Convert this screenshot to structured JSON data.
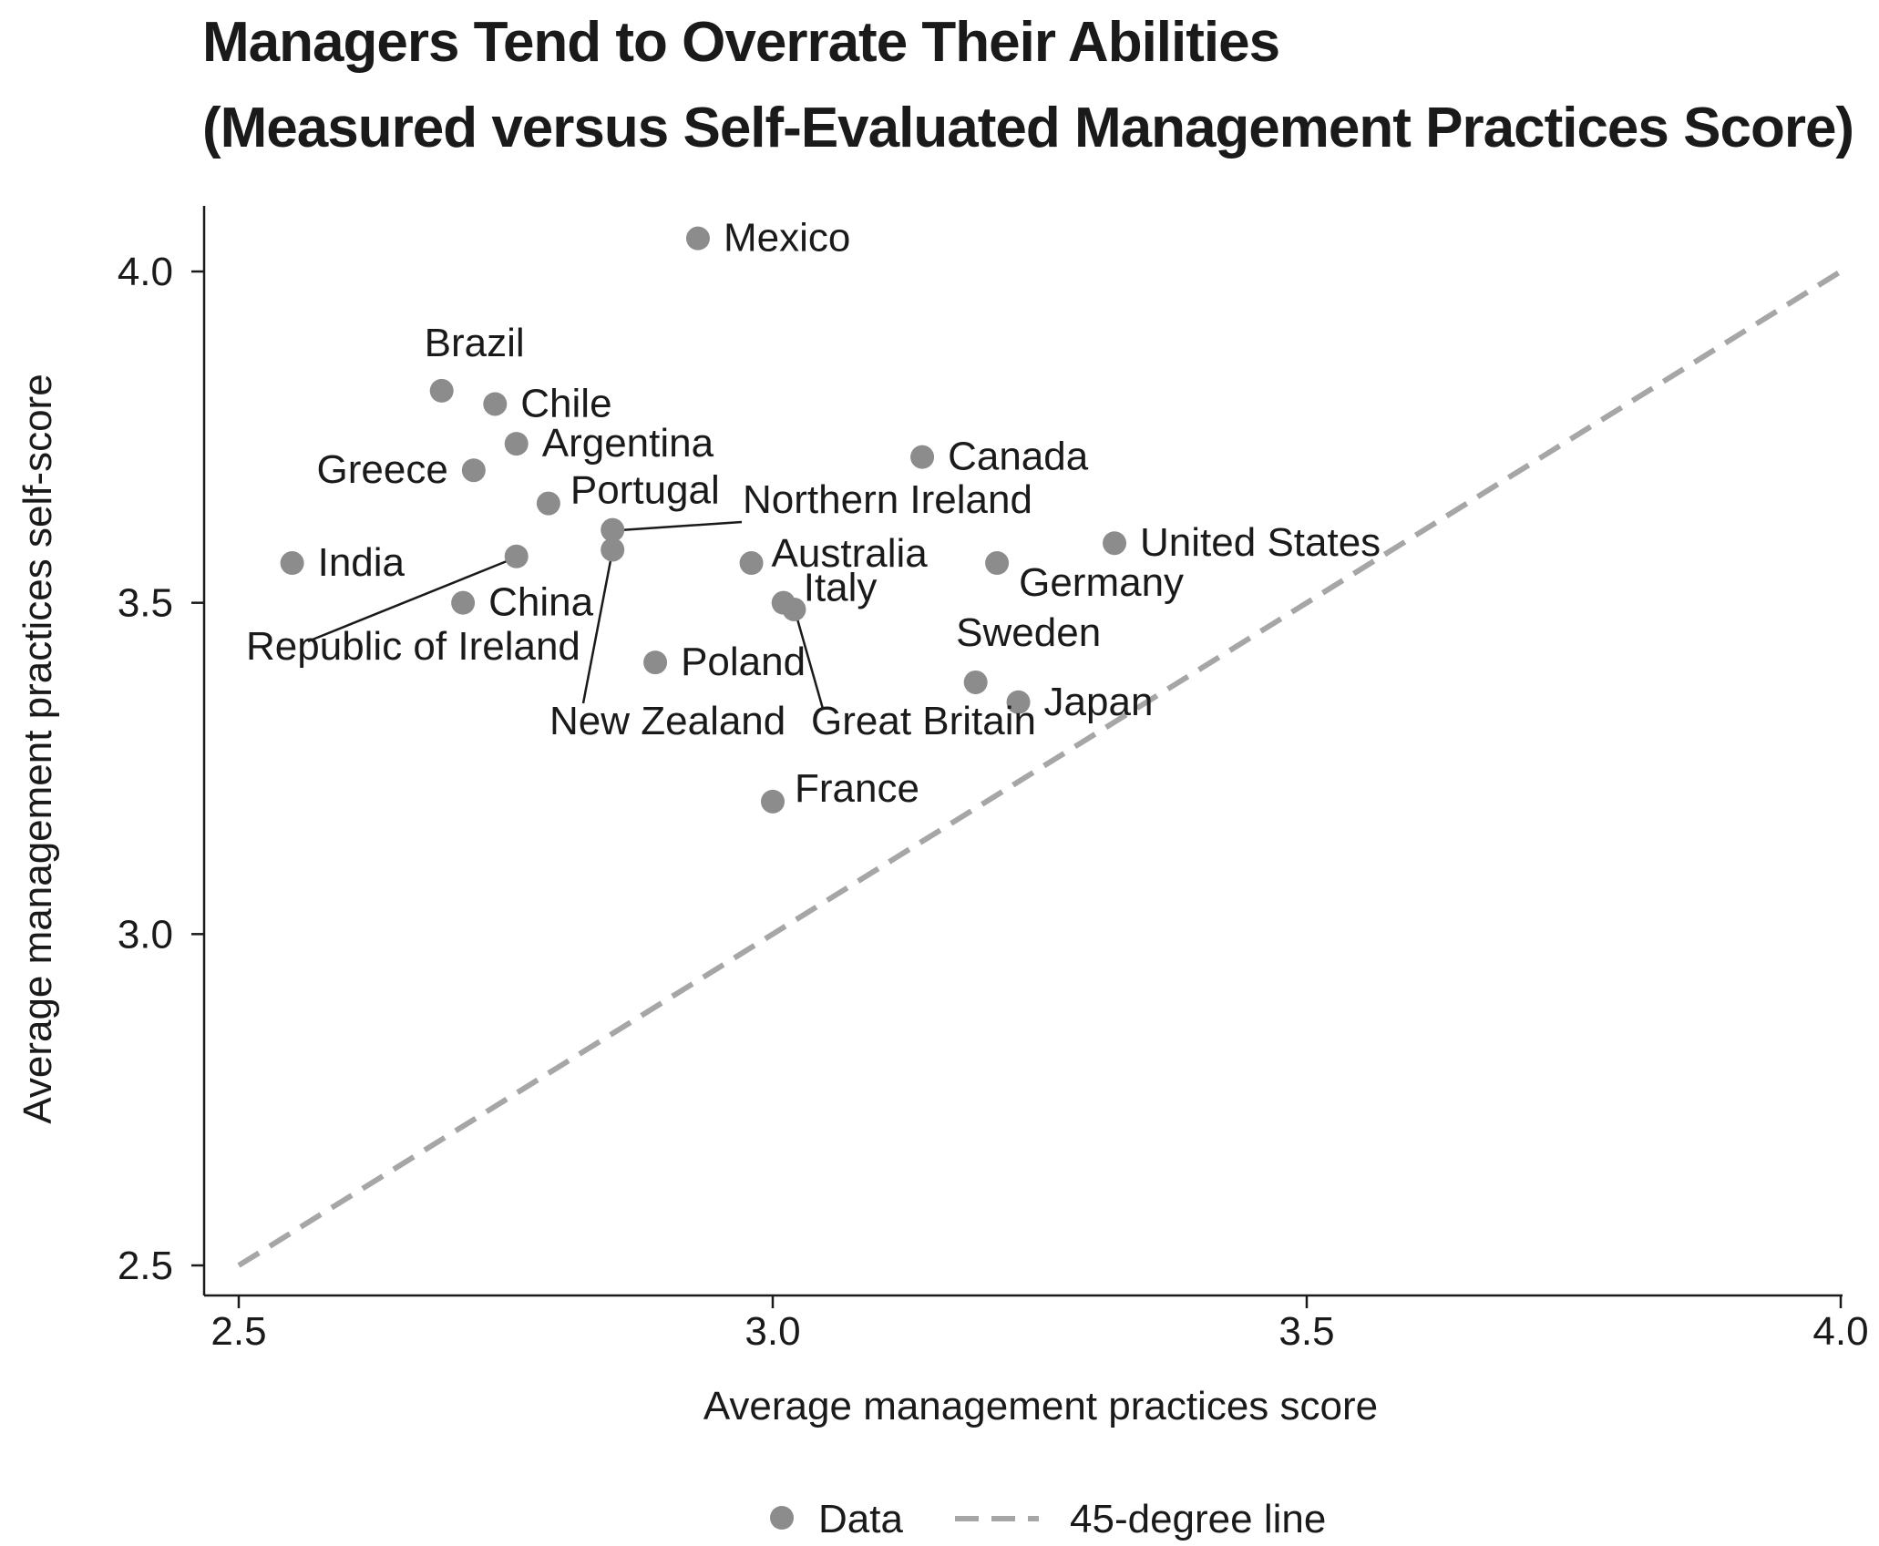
{
  "chart_data": {
    "type": "scatter",
    "title": "Managers Tend to Overrate Their Abilities",
    "subtitle": "(Measured versus Self-Evaluated Management Practices Score)",
    "xlabel": "Average management practices score",
    "ylabel": "Average management practices self-score",
    "xlim": [
      2.5,
      4.0
    ],
    "ylim": [
      2.5,
      4.0
    ],
    "xticks": [
      "2.5",
      "3.0",
      "3.5",
      "4.0"
    ],
    "yticks": [
      "2.5",
      "3.0",
      "3.5",
      "4.0"
    ],
    "grid": false,
    "legend_position": "bottom",
    "legend": [
      {
        "label": "Data",
        "marker": "circle"
      },
      {
        "label": "45-degree line",
        "marker": "dashed-line"
      }
    ],
    "reference_line": {
      "x": [
        2.5,
        4.0
      ],
      "y": [
        2.5,
        4.0
      ],
      "style": "dashed",
      "color": "#a6a6a6"
    },
    "marker_color": "#8c8c8c",
    "points": [
      {
        "name": "Mexico",
        "x": 2.93,
        "y": 4.05
      },
      {
        "name": "Brazil",
        "x": 2.69,
        "y": 3.82
      },
      {
        "name": "Chile",
        "x": 2.74,
        "y": 3.8
      },
      {
        "name": "Argentina",
        "x": 2.76,
        "y": 3.74
      },
      {
        "name": "Greece",
        "x": 2.72,
        "y": 3.7
      },
      {
        "name": "Portugal",
        "x": 2.79,
        "y": 3.65
      },
      {
        "name": "Canada",
        "x": 3.14,
        "y": 3.72
      },
      {
        "name": "Northern Ireland",
        "x": 2.85,
        "y": 3.61
      },
      {
        "name": "New Zealand",
        "x": 2.85,
        "y": 3.58
      },
      {
        "name": "Republic of Ireland",
        "x": 2.76,
        "y": 3.57
      },
      {
        "name": "India",
        "x": 2.55,
        "y": 3.56
      },
      {
        "name": "China",
        "x": 2.71,
        "y": 3.5
      },
      {
        "name": "Australia",
        "x": 2.98,
        "y": 3.56
      },
      {
        "name": "Italy",
        "x": 3.01,
        "y": 3.5
      },
      {
        "name": "Great Britain",
        "x": 3.02,
        "y": 3.49
      },
      {
        "name": "Poland",
        "x": 2.89,
        "y": 3.41
      },
      {
        "name": "United States",
        "x": 3.32,
        "y": 3.59
      },
      {
        "name": "Germany",
        "x": 3.21,
        "y": 3.56
      },
      {
        "name": "Sweden",
        "x": 3.19,
        "y": 3.38
      },
      {
        "name": "Japan",
        "x": 3.23,
        "y": 3.35
      },
      {
        "name": "France",
        "x": 3.0,
        "y": 3.2
      }
    ]
  }
}
